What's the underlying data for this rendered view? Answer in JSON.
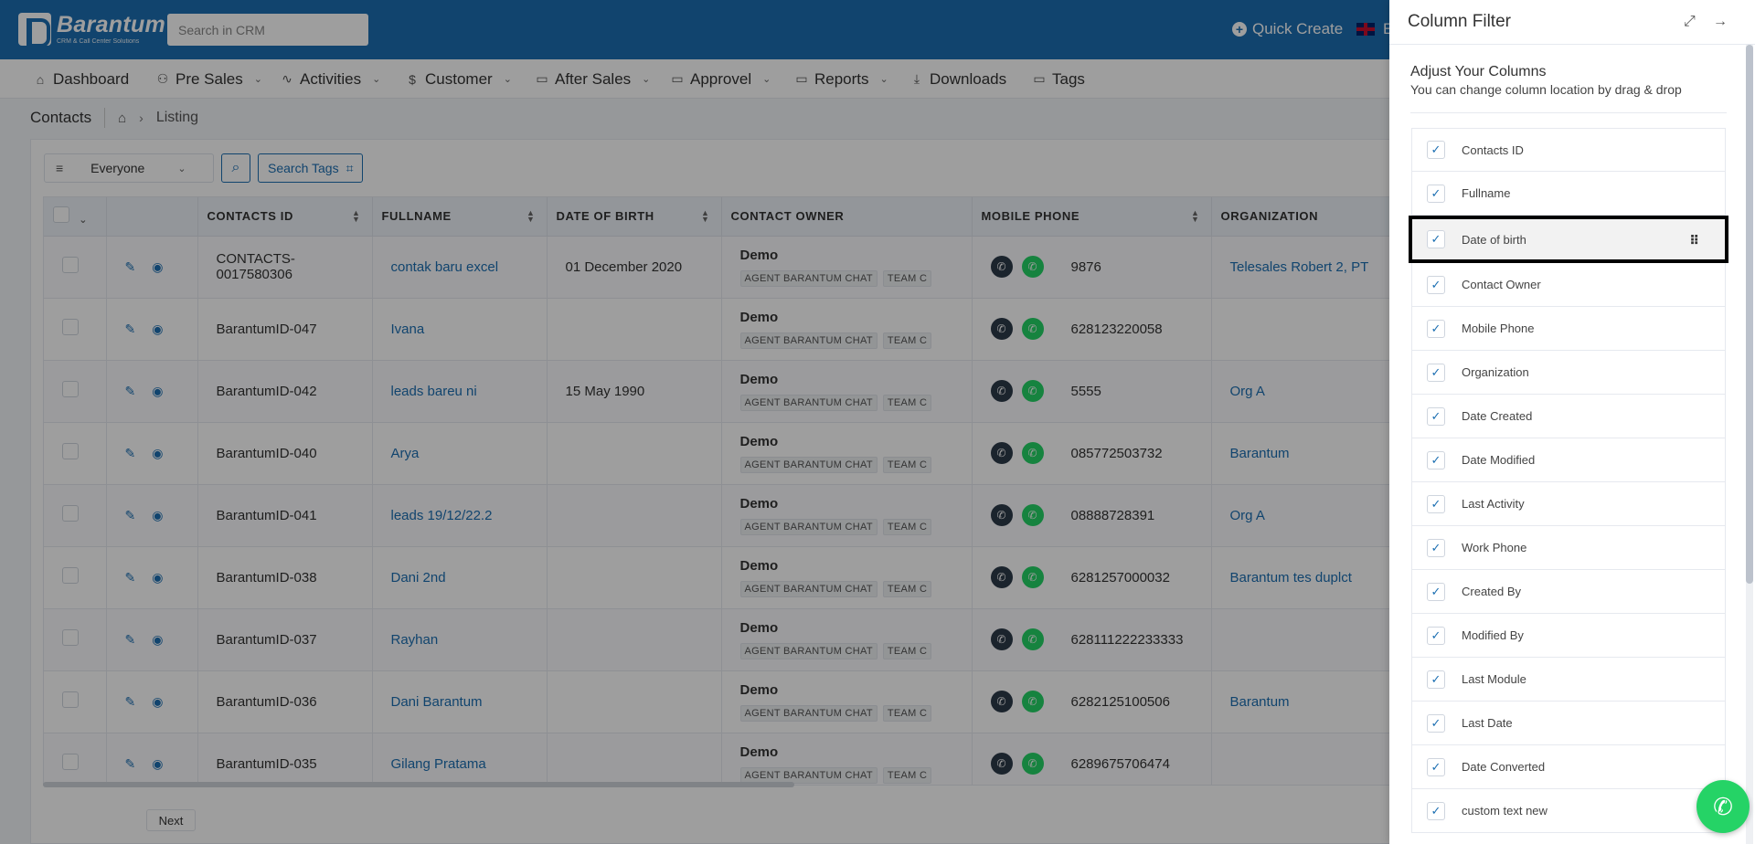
{
  "app": {
    "logo_name": "Barantum",
    "logo_sub": "CRM & Call Center Solutions",
    "search_placeholder": "Search in CRM",
    "quick_create": "Quick Create",
    "lang_letter": "E"
  },
  "nav": [
    {
      "label": "Dashboard",
      "icon": "home-icon"
    },
    {
      "label": "Pre Sales",
      "icon": "users-icon"
    },
    {
      "label": "Activities",
      "icon": "activity-icon"
    },
    {
      "label": "Customer",
      "icon": "dollar-icon"
    },
    {
      "label": "After Sales",
      "icon": "folder-icon"
    },
    {
      "label": "Approvel",
      "icon": "folder-icon"
    },
    {
      "label": "Reports",
      "icon": "folder-icon"
    },
    {
      "label": "Downloads",
      "icon": "download-icon"
    },
    {
      "label": "Tags",
      "icon": "folder-icon"
    }
  ],
  "breadcrumb": {
    "title": "Contacts",
    "current": "Listing"
  },
  "filter": {
    "owner": "Everyone",
    "search_tags": "Search Tags"
  },
  "table": {
    "columns": [
      "CONTACTS ID",
      "FULLNAME",
      "DATE OF BIRTH",
      "CONTACT OWNER",
      "MOBILE PHONE",
      "ORGANIZATION"
    ],
    "rows": [
      {
        "id": "CONTACTS-0017580306",
        "name": "contak baru excel",
        "dob": "01 December 2020",
        "owner": "Demo",
        "phone": "9876",
        "org": "Telesales Robert 2, PT"
      },
      {
        "id": "BarantumID-047",
        "name": "Ivana",
        "dob": "",
        "owner": "Demo",
        "phone": "628123220058",
        "org": ""
      },
      {
        "id": "BarantumID-042",
        "name": "leads bareu ni",
        "dob": "15 May 1990",
        "owner": "Demo",
        "phone": "5555",
        "org": "Org A"
      },
      {
        "id": "BarantumID-040",
        "name": "Arya",
        "dob": "",
        "owner": "Demo",
        "phone": "085772503732",
        "org": "Barantum"
      },
      {
        "id": "BarantumID-041",
        "name": "leads 19/12/22.2",
        "dob": "",
        "owner": "Demo",
        "phone": "08888728391",
        "org": "Org A"
      },
      {
        "id": "BarantumID-038",
        "name": "Dani 2nd",
        "dob": "",
        "owner": "Demo",
        "phone": "6281257000032",
        "org": "Barantum tes duplct"
      },
      {
        "id": "BarantumID-037",
        "name": "Rayhan",
        "dob": "",
        "owner": "Demo",
        "phone": "628111222233333",
        "org": ""
      },
      {
        "id": "BarantumID-036",
        "name": "Dani Barantum",
        "dob": "",
        "owner": "Demo",
        "phone": "6282125100506",
        "org": "Barantum"
      },
      {
        "id": "BarantumID-035",
        "name": "Gilang Pratama",
        "dob": "",
        "owner": "Demo",
        "phone": "6289675706474",
        "org": ""
      }
    ],
    "owner_tags": [
      "AGENT BARANTUM CHAT",
      "TEAM C"
    ]
  },
  "pagination": {
    "next": "Next"
  },
  "panel": {
    "title": "Column Filter",
    "subtitle": "Adjust Your Columns",
    "description": "You can change column location by drag & drop",
    "columns": [
      "Contacts ID",
      "Fullname",
      "Date of birth",
      "Contact Owner",
      "Mobile Phone",
      "Organization",
      "Date Created",
      "Date Modified",
      "Last Activity",
      "Work Phone",
      "Created By",
      "Modified By",
      "Last Module",
      "Last Date",
      "Date Converted",
      "custom text new"
    ],
    "selected_index": 2
  },
  "colors": {
    "brand": "#1c6fb2",
    "whatsapp": "#25d366"
  }
}
